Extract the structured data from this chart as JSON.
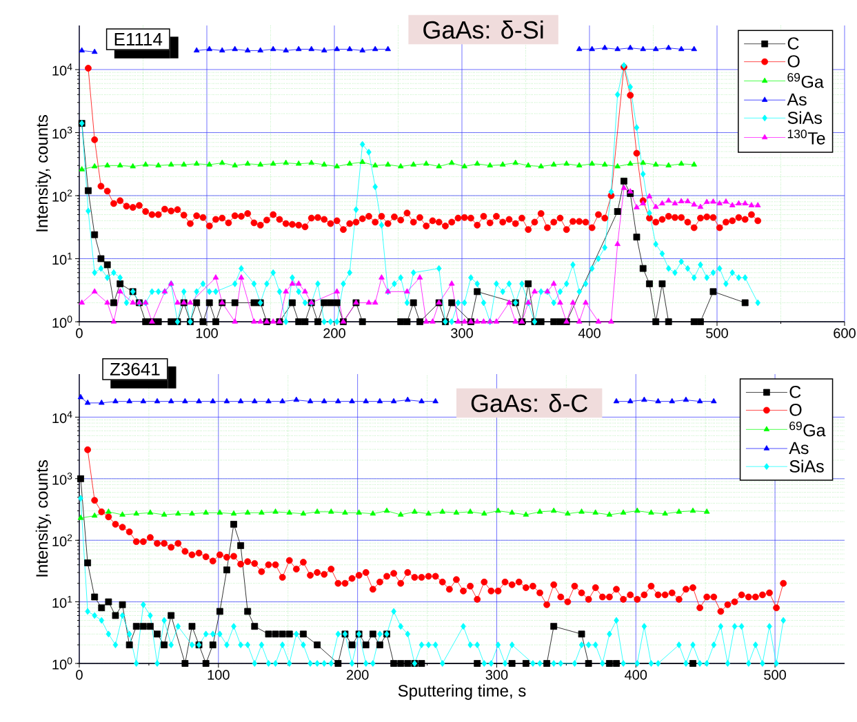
{
  "chart_data": [
    {
      "type": "line",
      "title": "GaAs: δ-Si",
      "annotations": [
        "E1114"
      ],
      "ylabel": "Intensity, counts",
      "xlim": [
        0,
        600
      ],
      "xticks": [
        0,
        100,
        200,
        300,
        400,
        500,
        600
      ],
      "ylim": [
        1,
        50000
      ],
      "yticks": [
        {
          "value": 1,
          "label": "10$^{0}$"
        },
        {
          "value": 10,
          "label": "10$^{1}$"
        },
        {
          "value": 100,
          "label": "10$^{2}$"
        },
        {
          "value": 1000,
          "label": "10$^{3}$"
        },
        {
          "value": 10000,
          "label": "10$^{4}$"
        }
      ],
      "log": "y",
      "grid": true,
      "legend": "top right",
      "line_style": "solid",
      "series": [
        {
          "name": "C",
          "color": "#000000",
          "marker": "square",
          "x": [
            2,
            7,
            12,
            17,
            22,
            27,
            32,
            42,
            47,
            52,
            57,
            62,
            72,
            77,
            82,
            87,
            92,
            97,
            102,
            107,
            112,
            122,
            137,
            142,
            147,
            157,
            167,
            172,
            177,
            182,
            187,
            192,
            197,
            202,
            207,
            217,
            222,
            252,
            257,
            262,
            267,
            282,
            287,
            292,
            307,
            312,
            342,
            347,
            352,
            357,
            362,
            372,
            377,
            382,
            422,
            427,
            432,
            437,
            442,
            447,
            452,
            457,
            462,
            482,
            487,
            497,
            522
          ],
          "values": [
            1400,
            120,
            24,
            10,
            8,
            2,
            4,
            3,
            2,
            1,
            1,
            1,
            1,
            1,
            2,
            1,
            2,
            1,
            2,
            1,
            2,
            2,
            2,
            2,
            1,
            1,
            2,
            1,
            1,
            2,
            1,
            2,
            2,
            2,
            1,
            2,
            1,
            1,
            1,
            2,
            1,
            2,
            1,
            2,
            1,
            3,
            2,
            1,
            4,
            1,
            1,
            1,
            1,
            1,
            56,
            170,
            108,
            22,
            7,
            4,
            1,
            4,
            1,
            1,
            1,
            3,
            2
          ]
        },
        {
          "name": "O",
          "color": "#ff0000",
          "marker": "circle",
          "x": [
            7,
            12,
            17,
            22,
            27,
            32,
            37,
            42,
            47,
            52,
            57,
            62,
            67,
            72,
            77,
            82,
            87,
            92,
            97,
            102,
            107,
            112,
            117,
            122,
            127,
            132,
            137,
            142,
            147,
            152,
            157,
            162,
            167,
            172,
            177,
            182,
            187,
            192,
            197,
            202,
            207,
            212,
            217,
            222,
            227,
            232,
            237,
            242,
            247,
            252,
            257,
            262,
            267,
            272,
            277,
            282,
            287,
            292,
            297,
            302,
            307,
            312,
            317,
            322,
            327,
            332,
            337,
            342,
            347,
            352,
            357,
            362,
            367,
            372,
            377,
            382,
            387,
            392,
            397,
            402,
            407,
            412,
            417,
            427,
            432,
            437,
            442,
            447,
            452,
            457,
            462,
            467,
            472,
            477,
            482,
            487,
            492,
            497,
            502,
            507,
            512,
            517,
            522,
            527,
            532
          ],
          "values": [
            10500,
            770,
            141,
            118,
            75,
            83,
            68,
            65,
            70,
            56,
            50,
            50,
            61,
            57,
            60,
            49,
            36,
            48,
            45,
            33,
            42,
            44,
            37,
            48,
            47,
            52,
            37,
            34,
            41,
            50,
            42,
            36,
            35,
            34,
            32,
            44,
            45,
            42,
            36,
            40,
            29,
            36,
            38,
            43,
            47,
            38,
            47,
            36,
            46,
            41,
            53,
            38,
            45,
            33,
            40,
            38,
            33,
            38,
            44,
            45,
            44,
            34,
            47,
            37,
            47,
            38,
            42,
            36,
            44,
            29,
            38,
            52,
            31,
            38,
            44,
            29,
            39,
            39,
            38,
            31,
            50,
            44,
            100,
            11000,
            3900,
            470,
            83,
            44,
            38,
            42,
            47,
            45,
            45,
            38,
            31,
            44,
            46,
            45,
            31,
            38,
            40,
            45,
            42,
            50,
            40
          ]
        },
        {
          "name": "$^{69}$Ga",
          "color": "#00ff00",
          "marker": "triangle",
          "x": [
            2,
            12,
            22,
            32,
            42,
            52,
            62,
            72,
            82,
            92,
            102,
            112,
            122,
            132,
            142,
            152,
            162,
            172,
            182,
            192,
            202,
            212,
            222,
            232,
            242,
            252,
            262,
            272,
            282,
            292,
            302,
            312,
            322,
            332,
            342,
            352,
            362,
            372,
            382,
            392,
            402,
            412,
            422,
            432,
            442,
            452,
            462,
            472,
            482
          ],
          "values": [
            260,
            290,
            300,
            300,
            290,
            310,
            300,
            310,
            310,
            320,
            310,
            330,
            300,
            320,
            310,
            320,
            330,
            320,
            330,
            310,
            290,
            320,
            340,
            300,
            310,
            290,
            310,
            320,
            290,
            330,
            290,
            320,
            300,
            310,
            330,
            300,
            290,
            310,
            320,
            300,
            320,
            310,
            290,
            320,
            330,
            310,
            300,
            320,
            310
          ]
        },
        {
          "name": "As",
          "color": "#0000ff",
          "marker": "triangle",
          "x": [
            2,
            12,
            50,
            92,
            102,
            112,
            122,
            132,
            142,
            152,
            162,
            172,
            182,
            192,
            202,
            212,
            222,
            232,
            242,
            320,
            392,
            402,
            412,
            422,
            432,
            442,
            452,
            462,
            472,
            482
          ],
          "values": [
            20000,
            19000,
            null,
            20000,
            21000,
            20000,
            21000,
            20000,
            20000,
            21000,
            20000,
            21000,
            21000,
            20000,
            21000,
            21000,
            20000,
            21000,
            21000,
            null,
            21000,
            21000,
            22000,
            21000,
            22000,
            21000,
            21000,
            22000,
            21000,
            21000
          ]
        },
        {
          "name": "SiAs",
          "color": "#00ffff",
          "marker": "diamond",
          "x": [
            2,
            7,
            12,
            17,
            22,
            27,
            32,
            37,
            42,
            47,
            52,
            57,
            62,
            67,
            72,
            77,
            82,
            87,
            92,
            97,
            102,
            107,
            122,
            127,
            137,
            142,
            147,
            152,
            157,
            162,
            167,
            172,
            177,
            182,
            187,
            192,
            197,
            202,
            207,
            212,
            217,
            222,
            227,
            232,
            237,
            242,
            247,
            252,
            257,
            262,
            282,
            287,
            292,
            297,
            302,
            307,
            312,
            317,
            322,
            327,
            332,
            337,
            342,
            347,
            352,
            357,
            362,
            367,
            372,
            377,
            382,
            387,
            392,
            397,
            402,
            407,
            412,
            417,
            422,
            427,
            432,
            437,
            442,
            447,
            452,
            457,
            462,
            467,
            472,
            477,
            482,
            487,
            492,
            497,
            502,
            507,
            512,
            517,
            522,
            532
          ],
          "values": [
            1400,
            57,
            6,
            7,
            5,
            6,
            5,
            2,
            3,
            2,
            2,
            3,
            3,
            3,
            4,
            1,
            3,
            1,
            3,
            4,
            3,
            3,
            4,
            7,
            4,
            2,
            4,
            6,
            3,
            1,
            5,
            3,
            2,
            2,
            4,
            1,
            1,
            1,
            4,
            6,
            60,
            650,
            490,
            138,
            34,
            3,
            4,
            5,
            2,
            6,
            7,
            1,
            1,
            2,
            2,
            5,
            4,
            2,
            1,
            4,
            3,
            4,
            2,
            4,
            2,
            1,
            3,
            3,
            2,
            3,
            4,
            8,
            3,
            4,
            7,
            10,
            15,
            115,
            4000,
            11600,
            5300,
            1200,
            220,
            53,
            17,
            12,
            7,
            6,
            9,
            7,
            5,
            8,
            5,
            6,
            7,
            4,
            6,
            5,
            5,
            2
          ]
        },
        {
          "name": "$^{130}$Te",
          "color": "#ff00ff",
          "marker": "triangle",
          "x": [
            2,
            12,
            22,
            27,
            32,
            42,
            47,
            52,
            57,
            67,
            72,
            77,
            82,
            87,
            107,
            112,
            122,
            127,
            137,
            142,
            147,
            152,
            157,
            162,
            167,
            172,
            177,
            182,
            202,
            207,
            217,
            227,
            232,
            237,
            242,
            257,
            267,
            272,
            277,
            282,
            292,
            297,
            302,
            307,
            312,
            317,
            322,
            327,
            337,
            342,
            347,
            352,
            357,
            367,
            372,
            377,
            382,
            387,
            392,
            397,
            407,
            417,
            422,
            427,
            432,
            437,
            442,
            447,
            452,
            457,
            462,
            467,
            472,
            477,
            482,
            487,
            492,
            497,
            502,
            507,
            512,
            517,
            522,
            527,
            532
          ],
          "values": [
            2,
            3,
            2,
            1,
            3,
            2,
            2,
            2,
            1,
            3,
            4,
            2,
            2,
            2,
            5,
            2,
            1,
            5,
            1,
            1,
            1,
            1,
            1,
            3,
            4,
            4,
            3,
            2,
            3,
            1,
            2,
            2,
            2,
            5,
            3,
            3,
            5,
            1,
            1,
            2,
            4,
            1,
            1,
            1,
            1,
            1,
            1,
            1,
            2,
            1,
            1,
            2,
            3,
            3,
            4,
            2,
            1,
            2,
            1,
            2,
            1,
            1,
            17,
            132,
            116,
            65,
            75,
            97,
            66,
            75,
            83,
            75,
            81,
            81,
            72,
            66,
            79,
            80,
            75,
            80,
            70,
            75,
            75,
            70,
            70
          ]
        }
      ]
    },
    {
      "type": "line",
      "title": "GaAs: δ-C",
      "annotations": [
        "Z3641"
      ],
      "xlabel": "Sputtering time, s",
      "ylabel": "Intensity, counts",
      "xlim": [
        0,
        550
      ],
      "xticks": [
        0,
        100,
        200,
        300,
        400,
        500
      ],
      "ylim": [
        1,
        50000
      ],
      "yticks": [
        {
          "value": 1,
          "label": "10$^{0}$"
        },
        {
          "value": 10,
          "label": "10$^{1}$"
        },
        {
          "value": 100,
          "label": "10$^{2}$"
        },
        {
          "value": 1000,
          "label": "10$^{3}$"
        },
        {
          "value": 10000,
          "label": "10$^{4}$"
        }
      ],
      "log": "y",
      "grid": true,
      "legend": "top right",
      "line_style": "solid",
      "series": [
        {
          "name": "C",
          "color": "#000000",
          "marker": "square",
          "x": [
            1,
            6,
            11,
            16,
            21,
            26,
            31,
            36,
            41,
            46,
            51,
            56,
            61,
            66,
            76,
            81,
            86,
            91,
            96,
            101,
            106,
            111,
            116,
            121,
            126,
            136,
            141,
            146,
            151,
            161,
            171,
            186,
            191,
            196,
            201,
            206,
            211,
            216,
            221,
            226,
            231,
            236,
            241,
            246,
            286,
            311,
            321,
            336,
            341,
            361,
            366,
            381,
            386,
            441
          ],
          "values": [
            1000,
            43,
            12,
            8,
            10,
            6,
            9,
            2,
            4,
            4,
            4,
            3,
            2,
            6,
            1,
            4,
            2,
            1,
            2,
            7,
            33,
            182,
            82,
            7,
            4,
            3,
            3,
            3,
            3,
            3,
            2,
            1,
            3,
            2,
            3,
            2,
            3,
            2,
            3,
            1,
            1,
            1,
            1,
            1,
            1,
            1,
            1,
            1,
            4,
            3,
            1,
            1,
            1,
            1
          ]
        },
        {
          "name": "O",
          "color": "#ff0000",
          "marker": "circle",
          "x": [
            6,
            11,
            16,
            21,
            26,
            31,
            36,
            41,
            46,
            51,
            56,
            61,
            66,
            71,
            76,
            81,
            86,
            91,
            96,
            101,
            106,
            111,
            116,
            121,
            126,
            131,
            136,
            141,
            146,
            151,
            156,
            161,
            166,
            171,
            176,
            181,
            186,
            191,
            196,
            201,
            206,
            211,
            216,
            221,
            226,
            231,
            236,
            241,
            246,
            251,
            256,
            261,
            266,
            271,
            276,
            281,
            286,
            291,
            296,
            301,
            306,
            311,
            316,
            321,
            326,
            331,
            336,
            341,
            346,
            351,
            356,
            361,
            366,
            371,
            376,
            381,
            386,
            391,
            396,
            401,
            406,
            411,
            416,
            421,
            426,
            431,
            436,
            441,
            446,
            451,
            456,
            461,
            466,
            471,
            476,
            481,
            486,
            491,
            496,
            501,
            506
          ],
          "values": [
            2950,
            445,
            290,
            240,
            182,
            163,
            137,
            95,
            95,
            111,
            89,
            89,
            77,
            89,
            66,
            58,
            62,
            54,
            46,
            58,
            53,
            55,
            41,
            45,
            42,
            31,
            40,
            40,
            25,
            47,
            34,
            44,
            27,
            30,
            28,
            34,
            20,
            20,
            24,
            27,
            30,
            16,
            21,
            26,
            29,
            20,
            30,
            25,
            25,
            26,
            26,
            21,
            16,
            23,
            15,
            18,
            11,
            21,
            15,
            15,
            21,
            19,
            21,
            17,
            18,
            14,
            9,
            19,
            12,
            10,
            18,
            14,
            11,
            17,
            12,
            12,
            16,
            11,
            13,
            11,
            13,
            18,
            13,
            13,
            14,
            11,
            16,
            17,
            8,
            12,
            12,
            7,
            9,
            10,
            13,
            12,
            12,
            13,
            14,
            8,
            20
          ]
        },
        {
          "name": "$^{69}$Ga",
          "color": "#00ff00",
          "marker": "triangle",
          "x": [
            1,
            11,
            21,
            31,
            41,
            51,
            61,
            71,
            81,
            91,
            101,
            111,
            121,
            131,
            141,
            151,
            161,
            171,
            181,
            191,
            201,
            211,
            221,
            231,
            241,
            251,
            261,
            271,
            281,
            291,
            301,
            311,
            321,
            331,
            341,
            351,
            361,
            371,
            381,
            391,
            401,
            411,
            421,
            431,
            441,
            451
          ],
          "values": [
            230,
            250,
            290,
            260,
            270,
            280,
            260,
            270,
            270,
            280,
            280,
            270,
            280,
            280,
            290,
            280,
            270,
            290,
            290,
            280,
            280,
            270,
            300,
            260,
            290,
            270,
            290,
            280,
            290,
            270,
            300,
            280,
            260,
            290,
            300,
            270,
            290,
            280,
            260,
            280,
            300,
            280,
            270,
            290,
            300,
            290
          ]
        },
        {
          "name": "As",
          "color": "#0000ff",
          "marker": "triangle",
          "x": [
            1,
            6,
            16,
            26,
            36,
            46,
            56,
            66,
            76,
            86,
            96,
            106,
            116,
            126,
            136,
            146,
            156,
            166,
            176,
            186,
            196,
            206,
            216,
            226,
            236,
            246,
            256,
            320,
            386,
            396,
            406,
            416,
            426,
            436,
            446,
            456
          ],
          "values": [
            21000,
            17000,
            17000,
            18000,
            18000,
            18000,
            18000,
            18000,
            18000,
            18000,
            18000,
            18000,
            18000,
            18000,
            18000,
            18000,
            19000,
            18000,
            18000,
            18000,
            18000,
            18000,
            18000,
            18000,
            19000,
            18000,
            18000,
            null,
            18000,
            18000,
            19000,
            18000,
            18000,
            19000,
            18000,
            18000
          ]
        },
        {
          "name": "SiAs",
          "color": "#00ffff",
          "marker": "diamond",
          "x": [
            1,
            6,
            11,
            16,
            21,
            26,
            31,
            36,
            41,
            46,
            51,
            56,
            61,
            66,
            71,
            81,
            86,
            91,
            96,
            101,
            106,
            111,
            116,
            121,
            126,
            131,
            136,
            141,
            146,
            151,
            156,
            161,
            166,
            171,
            176,
            181,
            186,
            191,
            196,
            201,
            206,
            211,
            216,
            221,
            226,
            231,
            236,
            241,
            246,
            251,
            256,
            261,
            276,
            281,
            286,
            291,
            296,
            301,
            306,
            311,
            326,
            331,
            341,
            346,
            356,
            361,
            366,
            371,
            376,
            381,
            386,
            391,
            401,
            406,
            411,
            416,
            431,
            436,
            441,
            446,
            451,
            456,
            461,
            466,
            471,
            476,
            481,
            486,
            491,
            496,
            501,
            506
          ],
          "values": [
            480,
            7,
            6,
            5,
            3,
            2,
            6,
            3,
            1,
            9,
            6,
            1,
            5,
            2,
            4,
            2,
            2,
            3,
            3,
            3,
            2,
            4,
            2,
            2,
            1,
            2,
            1,
            1,
            2,
            1,
            3,
            2,
            1,
            1,
            1,
            1,
            3,
            3,
            1,
            3,
            1,
            1,
            3,
            3,
            7,
            4,
            3,
            1,
            2,
            2,
            2,
            1,
            4,
            2,
            2,
            1,
            1,
            2,
            1,
            2,
            1,
            1,
            1,
            1,
            1,
            2,
            2,
            2,
            1,
            3,
            5,
            1,
            1,
            4,
            1,
            1,
            2,
            1,
            2,
            1,
            1,
            2,
            4,
            1,
            4,
            4,
            1,
            2,
            1,
            4,
            1,
            5
          ]
        }
      ]
    }
  ]
}
